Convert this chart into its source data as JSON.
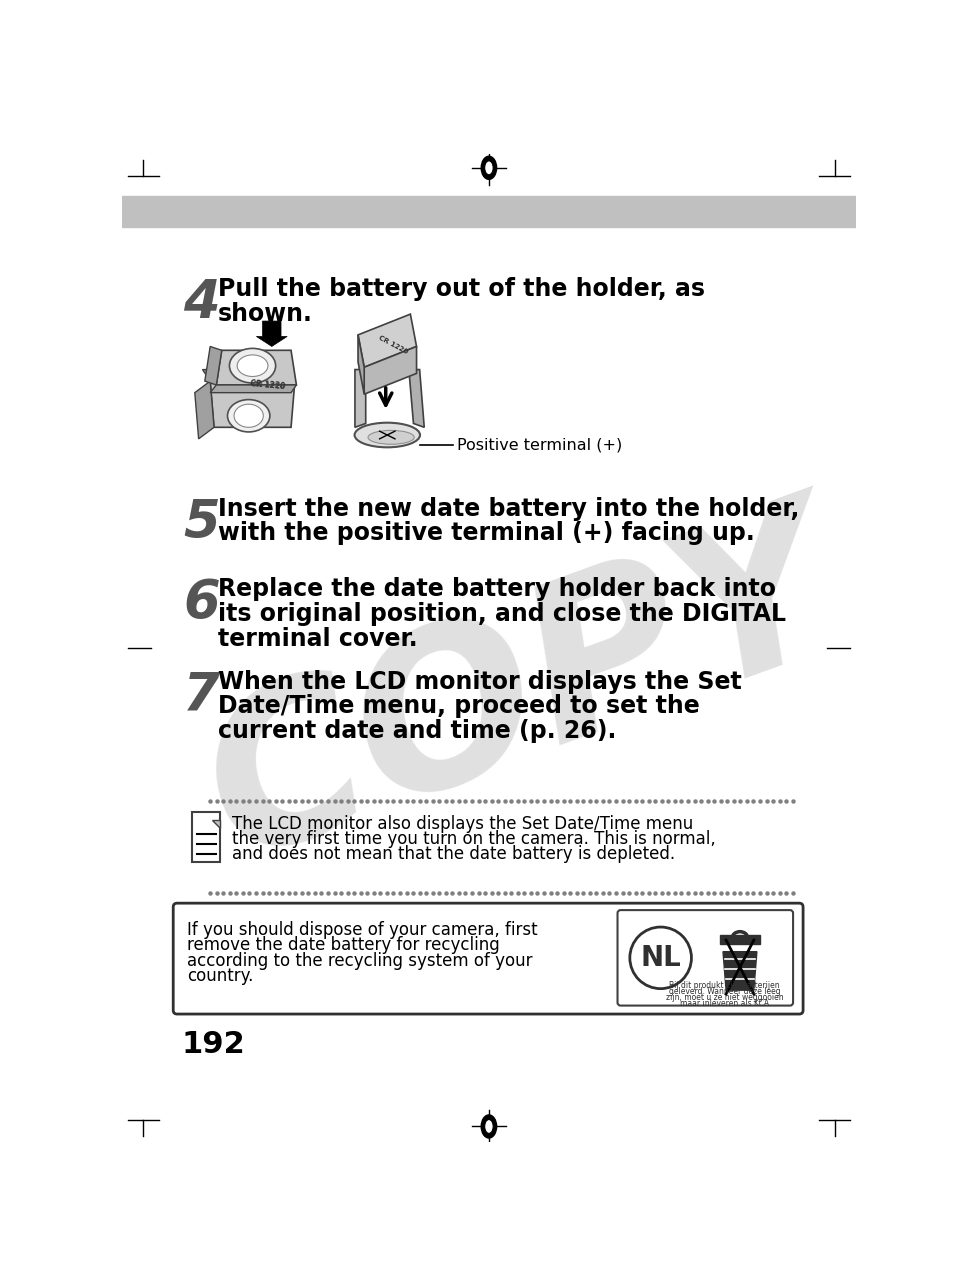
{
  "bg_color": "#ffffff",
  "header_bar_color": "#c0c0c0",
  "page_number": "192",
  "step4_number": "4",
  "step4_text_line1": "Pull the battery out of the holder, as",
  "step4_text_line2": "shown.",
  "step5_number": "5",
  "step5_text_line1": "Insert the new date battery into the holder,",
  "step5_text_line2": "with the positive terminal (+) facing up.",
  "step6_number": "6",
  "step6_text": "Replace the date battery holder back into\nits original position, and close the DIGITAL\nterminal cover.",
  "step7_number": "7",
  "step7_text": "When the LCD monitor displays the Set\nDate/Time menu, proceed to set the\ncurrent date and time (p. 26).",
  "note_text_line1": "The LCD monitor also displays the Set Date/Time menu",
  "note_text_line2": "the very first time you turn on the camera. This is normal,",
  "note_text_line3": "and does not mean that the date battery is depleted.",
  "box_text_line1": "If you should dispose of your camera, first",
  "box_text_line2": "remove the date battery for recycling",
  "box_text_line3": "according to the recycling system of your",
  "box_text_line4": "country.",
  "positive_terminal_label": "Positive terminal (+)",
  "copy_watermark": "COPY",
  "step_number_color": "#555555",
  "text_color": "#000000",
  "note_dot_color": "#808080"
}
